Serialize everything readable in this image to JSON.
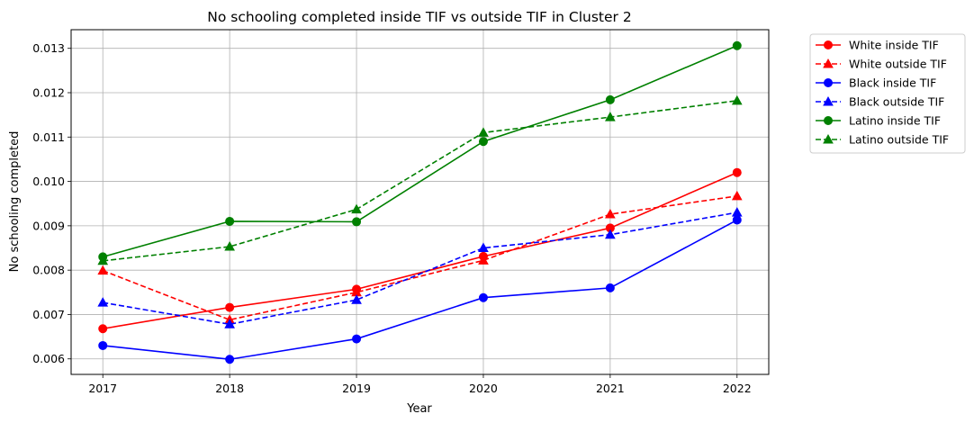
{
  "chart_data": {
    "type": "line",
    "title": "No schooling completed inside TIF vs outside TIF in Cluster 2",
    "xlabel": "Year",
    "ylabel": "No schooling completed",
    "x": [
      2017,
      2018,
      2019,
      2020,
      2021,
      2022
    ],
    "x_ticks": [
      "2017",
      "2018",
      "2019",
      "2020",
      "2021",
      "2022"
    ],
    "y_ticks": [
      "0.006",
      "0.007",
      "0.008",
      "0.009",
      "0.010",
      "0.011",
      "0.012",
      "0.013"
    ],
    "y_tick_values": [
      0.006,
      0.007,
      0.008,
      0.009,
      0.01,
      0.011,
      0.012,
      0.013
    ],
    "xlim": [
      2016.75,
      2022.25
    ],
    "ylim": [
      0.00565,
      0.01342
    ],
    "grid": true,
    "legend_position": "outside-top-right",
    "series": [
      {
        "name": "White inside TIF",
        "color": "#ff0000",
        "style": "solid",
        "marker": "circle",
        "values": [
          0.00668,
          0.00716,
          0.00757,
          0.00831,
          0.00895,
          0.0102
        ]
      },
      {
        "name": "White outside TIF",
        "color": "#ff0000",
        "style": "dashed",
        "marker": "triangle",
        "values": [
          0.00799,
          0.00688,
          0.0075,
          0.00822,
          0.00926,
          0.00967
        ]
      },
      {
        "name": "Black inside TIF",
        "color": "#0000ff",
        "style": "solid",
        "marker": "circle",
        "values": [
          0.0063,
          0.00599,
          0.00645,
          0.00738,
          0.0076,
          0.00913
        ]
      },
      {
        "name": "Black outside TIF",
        "color": "#0000ff",
        "style": "dashed",
        "marker": "triangle",
        "values": [
          0.00727,
          0.00678,
          0.00733,
          0.0085,
          0.0088,
          0.0093
        ]
      },
      {
        "name": "Latino inside TIF",
        "color": "#008000",
        "style": "solid",
        "marker": "circle",
        "values": [
          0.0083,
          0.0091,
          0.00909,
          0.0109,
          0.01184,
          0.01306
        ]
      },
      {
        "name": "Latino outside TIF",
        "color": "#008000",
        "style": "dashed",
        "marker": "triangle",
        "values": [
          0.00821,
          0.00853,
          0.00937,
          0.0111,
          0.01145,
          0.01182
        ]
      }
    ]
  }
}
